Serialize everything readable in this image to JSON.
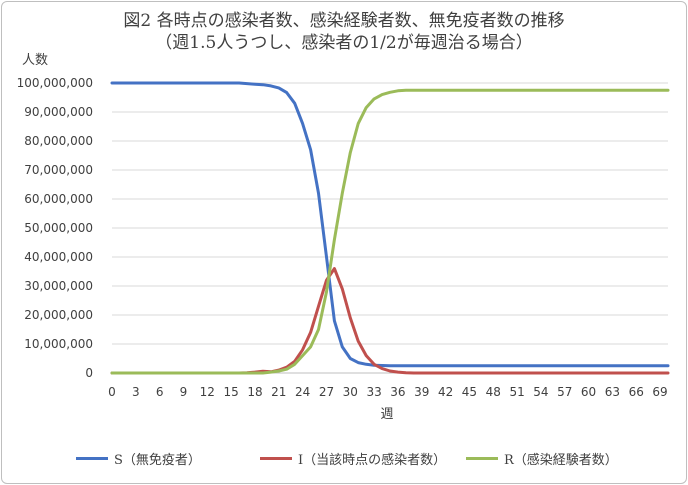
{
  "chart_data": {
    "type": "line",
    "title_line1": "図2 各時点の感染者数、感染経験者数、無免疫者数の推移",
    "title_line2": "（週1.5人うつし、感染者の1/2が毎週治る場合）",
    "ylabel": "人数",
    "xlabel": "週",
    "ylim": [
      0,
      100000000
    ],
    "yticks": [
      "0",
      "10,000,000",
      "20,000,000",
      "30,000,000",
      "40,000,000",
      "50,000,000",
      "60,000,000",
      "70,000,000",
      "80,000,000",
      "90,000,000",
      "100,000,000"
    ],
    "xticks": [
      "0",
      "3",
      "6",
      "9",
      "12",
      "15",
      "18",
      "21",
      "24",
      "27",
      "30",
      "33",
      "36",
      "39",
      "42",
      "45",
      "48",
      "51",
      "54",
      "57",
      "60",
      "63",
      "66",
      "69"
    ],
    "xlim": [
      0,
      70
    ],
    "grid": true,
    "legend_position": "bottom",
    "x": [
      0,
      16,
      17,
      18,
      19,
      20,
      21,
      22,
      23,
      24,
      25,
      26,
      27,
      28,
      29,
      30,
      31,
      32,
      33,
      34,
      35,
      36,
      37,
      38,
      70
    ],
    "series": [
      {
        "name": "S（無免疫者）",
        "color": "#4472c4",
        "values": [
          100000000,
          100000000,
          99800000,
          99600000,
          99400000,
          99000000,
          98300000,
          96700000,
          93000000,
          86000000,
          77000000,
          62000000,
          40000000,
          18000000,
          9000000,
          5000000,
          3600000,
          3000000,
          2700000,
          2600000,
          2500000,
          2500000,
          2500000,
          2500000,
          2500000
        ]
      },
      {
        "name": "I（当該時点の感染者数）",
        "color": "#c0504d",
        "values": [
          0,
          0,
          100000,
          300000,
          600000,
          400000,
          1000000,
          2000000,
          4000000,
          8000000,
          14000000,
          23000000,
          32000000,
          36000000,
          29000000,
          19000000,
          11000000,
          6000000,
          3000000,
          1500000,
          700000,
          300000,
          100000,
          0,
          0
        ]
      },
      {
        "name": "R（感染経験者数）",
        "color": "#9bbb59",
        "values": [
          0,
          0,
          0,
          0,
          0,
          300000,
          700000,
          1300000,
          3000000,
          6000000,
          9000000,
          15000000,
          28000000,
          46000000,
          62000000,
          76000000,
          86000000,
          91500000,
          94500000,
          96000000,
          96800000,
          97300000,
          97500000,
          97500000,
          97500000
        ]
      }
    ]
  }
}
